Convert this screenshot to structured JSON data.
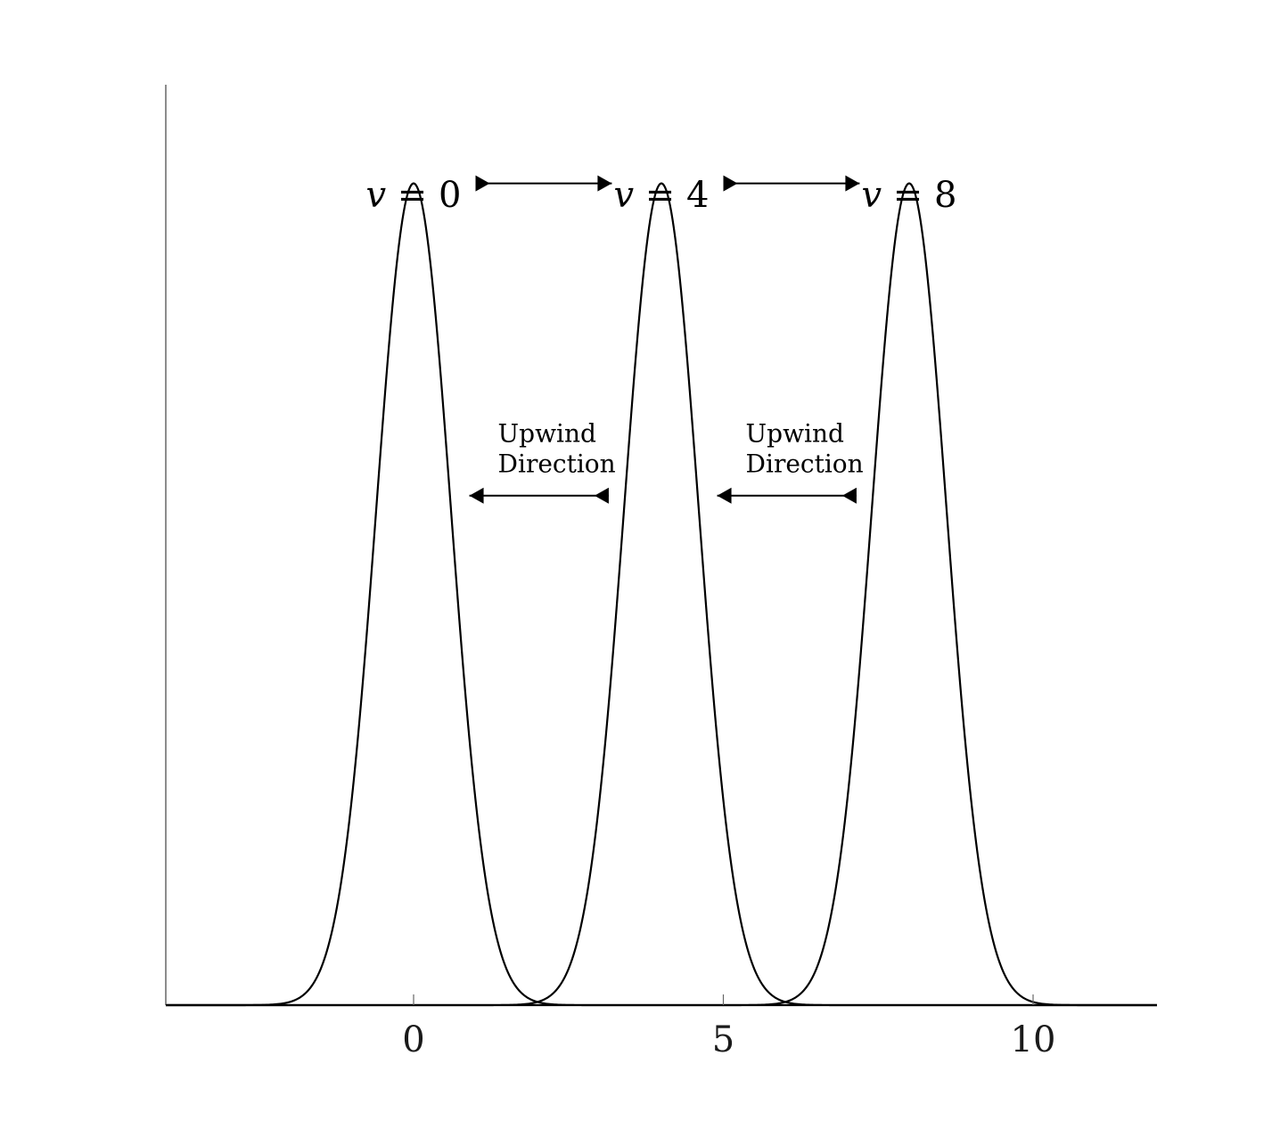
{
  "chart_data": {
    "type": "line",
    "title": "",
    "xlabel": "",
    "ylabel": "",
    "xlim": [
      -4,
      12
    ],
    "ylim": [
      0,
      1.12
    ],
    "xticks": [
      0,
      5,
      10
    ],
    "xtick_labels": [
      "0",
      "5",
      "10"
    ],
    "grid": false,
    "legend": "none",
    "series": [
      {
        "center": 0,
        "peak": 1,
        "sigma": 0.6,
        "color": "#000000"
      },
      {
        "center": 4,
        "peak": 1,
        "sigma": 0.6,
        "color": "#000000"
      },
      {
        "center": 8,
        "peak": 1,
        "sigma": 0.6,
        "color": "#000000"
      }
    ],
    "peak_labels": [
      {
        "variable": "v",
        "relation": " = ",
        "value": "0",
        "x": 0
      },
      {
        "variable": "v",
        "relation": " = ",
        "value": "4",
        "x": 4
      },
      {
        "variable": "v",
        "relation": " = ",
        "value": "8",
        "x": 8
      }
    ],
    "motion_arrows": [
      {
        "from": 1,
        "to": 3.2,
        "y": 1.0,
        "direction": "right"
      },
      {
        "from": 5,
        "to": 7.2,
        "y": 1.0,
        "direction": "right"
      }
    ],
    "upwind_arrows": [
      {
        "from": 3.15,
        "to": 0.9,
        "y": 0.62,
        "direction": "left",
        "text_line1": "Upwind",
        "text_line2": "Direction"
      },
      {
        "from": 7.15,
        "to": 4.9,
        "y": 0.62,
        "direction": "left",
        "text_line1": "Upwind",
        "text_line2": "Direction"
      }
    ]
  }
}
